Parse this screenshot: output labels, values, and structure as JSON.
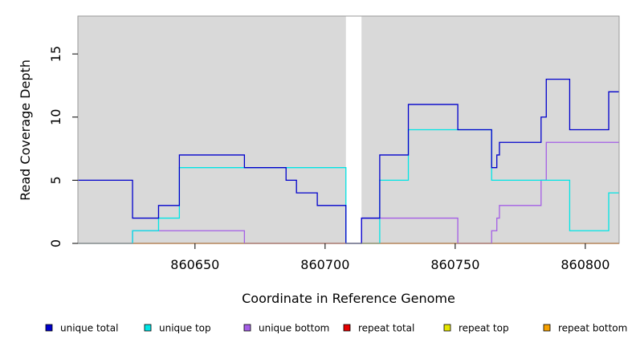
{
  "chart_data": {
    "type": "line",
    "xlabel": "Coordinate in Reference Genome",
    "ylabel": "Read Coverage Depth",
    "xlim": [
      860605,
      860813
    ],
    "ylim": [
      0,
      18
    ],
    "x_ticks": [
      860650,
      860700,
      860750,
      860800
    ],
    "y_ticks": [
      0,
      5,
      10,
      15
    ],
    "background_color": "#d9d9d9",
    "gap": [
      860708,
      860714
    ],
    "legend_position": "bottom",
    "series": [
      {
        "name": "unique total",
        "color": "#0000cc",
        "points": [
          [
            860605,
            5
          ],
          [
            860626,
            5
          ],
          [
            860626,
            2
          ],
          [
            860636,
            2
          ],
          [
            860636,
            3
          ],
          [
            860644,
            3
          ],
          [
            860644,
            7
          ],
          [
            860669,
            7
          ],
          [
            860669,
            6
          ],
          [
            860685,
            6
          ],
          [
            860685,
            5
          ],
          [
            860689,
            5
          ],
          [
            860689,
            4
          ],
          [
            860697,
            4
          ],
          [
            860697,
            3
          ],
          [
            860708,
            3
          ],
          [
            860708,
            0
          ],
          [
            860714,
            0
          ],
          [
            860714,
            2
          ],
          [
            860721,
            2
          ],
          [
            860721,
            7
          ],
          [
            860732,
            7
          ],
          [
            860732,
            11
          ],
          [
            860751,
            11
          ],
          [
            860751,
            9
          ],
          [
            860764,
            9
          ],
          [
            860764,
            6
          ],
          [
            860766,
            6
          ],
          [
            860766,
            7
          ],
          [
            860767,
            7
          ],
          [
            860767,
            8
          ],
          [
            860783,
            8
          ],
          [
            860783,
            10
          ],
          [
            860785,
            10
          ],
          [
            860785,
            13
          ],
          [
            860794,
            13
          ],
          [
            860794,
            9
          ],
          [
            860809,
            9
          ],
          [
            860809,
            12
          ],
          [
            860813,
            12
          ]
        ]
      },
      {
        "name": "unique top",
        "color": "#00e5e5",
        "points": [
          [
            860605,
            0
          ],
          [
            860626,
            0
          ],
          [
            860626,
            1
          ],
          [
            860636,
            1
          ],
          [
            860636,
            2
          ],
          [
            860644,
            2
          ],
          [
            860644,
            6
          ],
          [
            860669,
            6
          ],
          [
            860708,
            6
          ],
          [
            860708,
            0
          ],
          [
            860721,
            0
          ],
          [
            860721,
            5
          ],
          [
            860732,
            5
          ],
          [
            860732,
            9
          ],
          [
            860764,
            9
          ],
          [
            860764,
            5
          ],
          [
            860794,
            5
          ],
          [
            860794,
            1
          ],
          [
            860809,
            1
          ],
          [
            860809,
            4
          ],
          [
            860813,
            4
          ]
        ]
      },
      {
        "name": "unique bottom",
        "color": "#a45ee5",
        "points": [
          [
            860605,
            0
          ],
          [
            860626,
            0
          ],
          [
            860626,
            1
          ],
          [
            860669,
            1
          ],
          [
            860669,
            0
          ],
          [
            860714,
            0
          ],
          [
            860714,
            2
          ],
          [
            860751,
            2
          ],
          [
            860751,
            0
          ],
          [
            860764,
            0
          ],
          [
            860764,
            1
          ],
          [
            860766,
            1
          ],
          [
            860766,
            2
          ],
          [
            860767,
            2
          ],
          [
            860767,
            3
          ],
          [
            860783,
            3
          ],
          [
            860783,
            5
          ],
          [
            860785,
            5
          ],
          [
            860785,
            8
          ],
          [
            860813,
            8
          ]
        ]
      },
      {
        "name": "repeat total",
        "color": "#e50000",
        "points": [
          [
            860605,
            0
          ],
          [
            860813,
            0
          ]
        ]
      },
      {
        "name": "repeat top",
        "color": "#e5e500",
        "points": [
          [
            860605,
            0
          ],
          [
            860813,
            0
          ]
        ]
      },
      {
        "name": "repeat bottom",
        "color": "#f5a000",
        "points": [
          [
            860626,
            0
          ],
          [
            860813,
            0
          ]
        ]
      }
    ]
  }
}
